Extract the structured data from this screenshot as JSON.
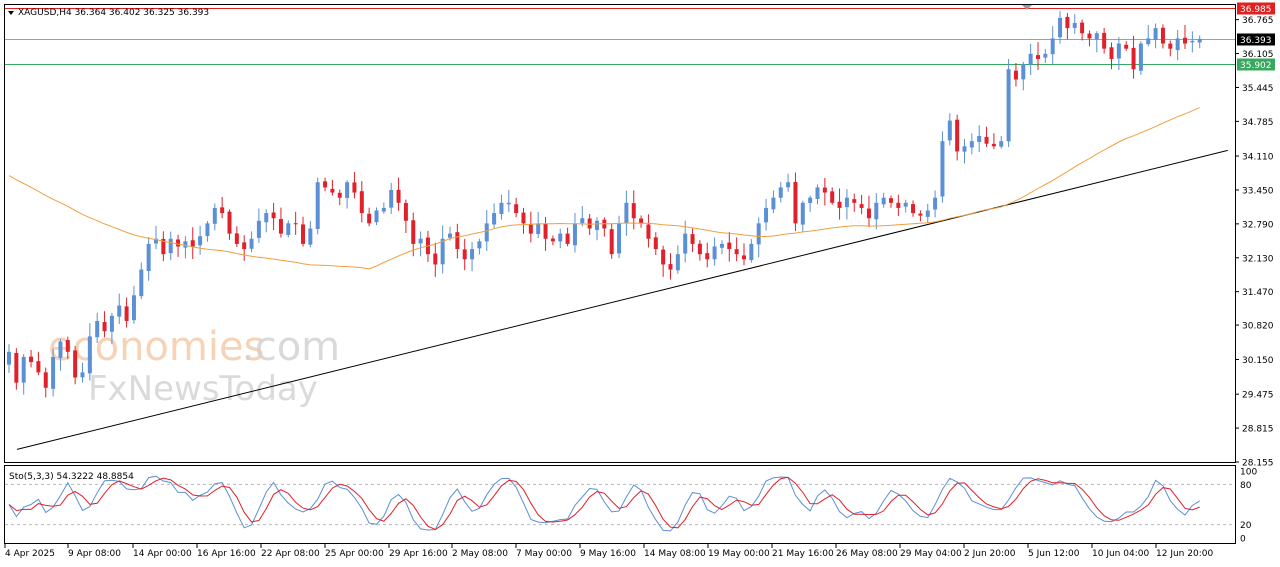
{
  "header": {
    "symbol_line": "XAGUSD,H4  36.364 36.402 36.325 36.393"
  },
  "watermark": {
    "line1a": "economies",
    "line1b": ".com",
    "line2": "FxNewsToday"
  },
  "stoch_header": "Sto(5,3,3) 54.3222 48.8854",
  "colors": {
    "bull": "#5b8fd6",
    "bear": "#e0202a",
    "ma": "#f0a040",
    "trend": "#000000",
    "resistance": "#e02020",
    "support": "#38a860",
    "current": "#000000",
    "stoch_main": "#5b8fd6",
    "stoch_signal": "#e0202a"
  },
  "chart_data": {
    "type": "candlestick",
    "symbol": "XAGUSD",
    "timeframe": "H4",
    "ohlc_last": {
      "open": 36.364,
      "high": 36.402,
      "low": 36.325,
      "close": 36.393
    },
    "y_ticks": [
      "36.765",
      "36.105",
      "35.445",
      "34.785",
      "34.110",
      "33.450",
      "32.790",
      "32.130",
      "31.470",
      "30.820",
      "30.150",
      "29.475",
      "28.815",
      "28.155"
    ],
    "ylim": [
      28.155,
      37.05
    ],
    "x_ticks": [
      "4 Apr 2025",
      "9 Apr 08:00",
      "14 Apr 00:00",
      "16 Apr 16:00",
      "22 Apr 08:00",
      "25 Apr 00:00",
      "29 Apr 16:00",
      "2 May 08:00",
      "7 May 00:00",
      "9 May 16:00",
      "14 May 08:00",
      "19 May 00:00",
      "21 May 16:00",
      "26 May 08:00",
      "29 May 04:00",
      "2 Jun 20:00",
      "5 Jun 12:00",
      "10 Jun 04:00",
      "12 Jun 20:00"
    ],
    "price_levels": [
      {
        "label": "36.985",
        "value": 36.985,
        "color": "#e02020"
      },
      {
        "label": "36.393",
        "value": 36.393,
        "color": "#000000"
      },
      {
        "label": "35.902",
        "value": 35.902,
        "color": "#38a860"
      }
    ],
    "closes": [
      30.3,
      29.7,
      30.2,
      30.1,
      29.9,
      29.6,
      30.2,
      30.5,
      30.3,
      29.8,
      29.9,
      30.6,
      30.9,
      30.7,
      31.0,
      31.2,
      30.9,
      31.4,
      31.9,
      32.4,
      32.5,
      32.2,
      32.5,
      32.35,
      32.45,
      32.35,
      32.55,
      32.8,
      33.1,
      33.0,
      32.6,
      32.4,
      32.3,
      32.5,
      32.85,
      33.0,
      32.9,
      32.6,
      32.8,
      32.8,
      32.4,
      32.7,
      33.6,
      33.5,
      33.4,
      33.3,
      33.6,
      33.4,
      33.0,
      32.8,
      33.05,
      33.1,
      33.45,
      33.2,
      32.85,
      32.4,
      32.5,
      32.2,
      32.0,
      32.5,
      32.6,
      32.3,
      32.1,
      32.3,
      32.45,
      32.8,
      33.0,
      33.2,
      33.2,
      33.0,
      32.8,
      32.6,
      32.8,
      32.5,
      32.45,
      32.6,
      32.4,
      32.8,
      32.9,
      32.7,
      32.85,
      32.7,
      32.2,
      32.8,
      33.2,
      32.9,
      32.8,
      32.5,
      32.3,
      32.0,
      31.9,
      32.2,
      32.6,
      32.4,
      32.2,
      32.1,
      32.35,
      32.4,
      32.3,
      32.2,
      32.1,
      32.4,
      32.8,
      33.1,
      33.3,
      33.5,
      33.6,
      32.8,
      33.2,
      33.3,
      33.5,
      33.4,
      33.2,
      33.1,
      33.3,
      33.2,
      33.1,
      32.9,
      33.2,
      33.3,
      33.2,
      33.1,
      33.2,
      33.0,
      32.95,
      33.05,
      33.3,
      34.4,
      34.8,
      34.2,
      34.3,
      34.4,
      34.5,
      34.35,
      34.3,
      34.4,
      35.8,
      35.6,
      35.9,
      36.1,
      36.0,
      36.1,
      36.4,
      36.8,
      36.6,
      36.7,
      36.5,
      36.4,
      36.5,
      36.2,
      36.0,
      36.3,
      36.2,
      35.8,
      36.3,
      36.4,
      36.6,
      36.3,
      36.2,
      36.4,
      36.3,
      36.35,
      36.39
    ],
    "ma_period": 50,
    "trendline": {
      "from": {
        "index": 0,
        "value": 28.4
      },
      "to": {
        "index": 165,
        "value": 34.22
      }
    },
    "stochastic": {
      "name": "Sto(5,3,3)",
      "k_last": 54.3222,
      "d_last": 48.8854,
      "levels": [
        20,
        80
      ],
      "y_ticks": [
        "100",
        "80",
        "20",
        "0"
      ]
    }
  }
}
